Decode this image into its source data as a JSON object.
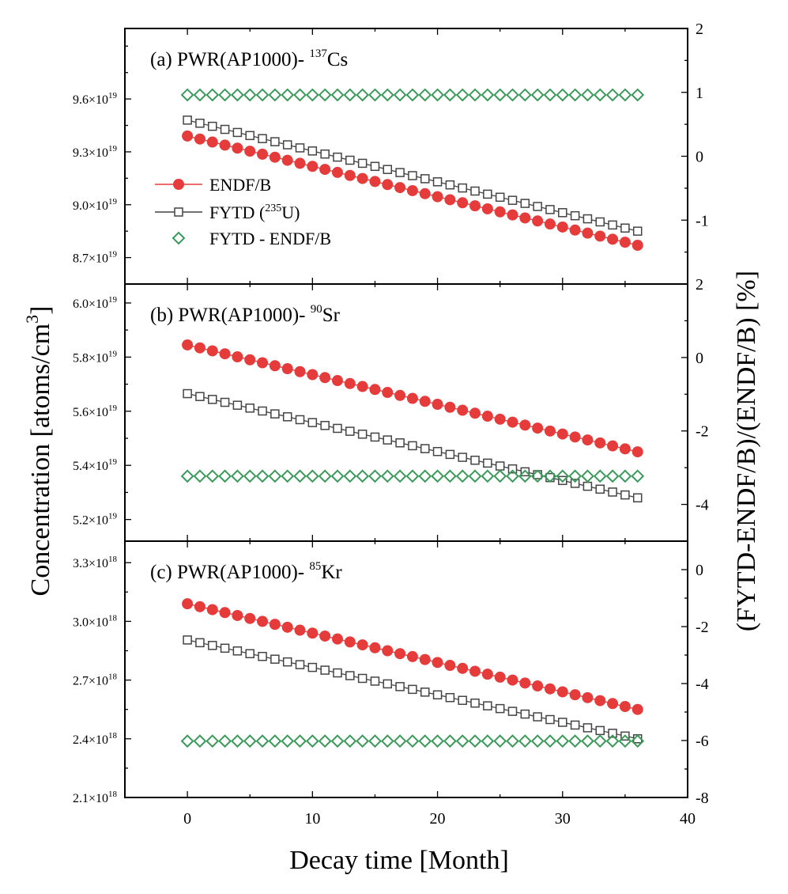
{
  "chart_data": {
    "type": "line",
    "xlabel": "Decay time [Month]",
    "ylabel_left": "Concentration [atoms/cm",
    "ylabel_left_sup": "3",
    "ylabel_left_end": "]",
    "ylabel_right": "(FYTD-ENDF/B)/(ENDF/B)  [%]",
    "xlim": [
      -5,
      40
    ],
    "xticks": [
      0,
      10,
      20,
      30,
      40
    ],
    "xtick_labels": [
      "0",
      "10",
      "20",
      "30",
      "40"
    ],
    "legend": {
      "position": "center-left of panel (a)",
      "entries": [
        {
          "label": "ENDF/B",
          "marker": "filled-circle",
          "color": "#e63b3b"
        },
        {
          "label_pre": "FYTD (",
          "label_sup": "235",
          "label_post": "U)",
          "marker": "open-square",
          "color": "#444444"
        },
        {
          "label": "FYTD - ENDF/B",
          "marker": "open-diamond",
          "color": "#3a9a5a"
        }
      ]
    },
    "panels": [
      {
        "id": "a",
        "title_pre": "(a) PWR(AP1000)-",
        "title_sup": "137",
        "title_post": "Cs",
        "ylim": [
          8.55,
          10.0
        ],
        "yticks": [
          8.7,
          9.0,
          9.3,
          9.6
        ],
        "ytick_mantissa": [
          "8.7",
          "9.0",
          "9.3",
          "9.6"
        ],
        "ytick_exponent": "19",
        "y2lim": [
          -2,
          2
        ],
        "y2ticks": [
          -1,
          0,
          1,
          2
        ],
        "y2tick_labels": [
          "-1",
          "0",
          "1",
          "2"
        ],
        "x": [
          0,
          36
        ],
        "series": [
          {
            "name": "ENDF/B",
            "unit_scale": "1e19",
            "start": 9.39,
            "end": 8.77
          },
          {
            "name": "FYTD (235U)",
            "unit_scale": "1e19",
            "start": 9.48,
            "end": 8.85
          },
          {
            "name": "FYTD - ENDF/B",
            "unit": "%",
            "start": 0.96,
            "end": 0.96
          }
        ]
      },
      {
        "id": "b",
        "title_pre": "(b) PWR(AP1000)-",
        "title_sup": "90",
        "title_post": "Sr",
        "ylim": [
          5.12,
          6.07
        ],
        "yticks": [
          5.2,
          5.4,
          5.6,
          5.8,
          6.0
        ],
        "ytick_mantissa": [
          "5.2",
          "5.4",
          "5.6",
          "5.8",
          "6.0"
        ],
        "ytick_exponent": "19",
        "y2lim": [
          -5,
          2
        ],
        "y2ticks": [
          -4,
          -2,
          0,
          2
        ],
        "y2tick_labels": [
          "-4",
          "-2",
          "0",
          "2"
        ],
        "x": [
          0,
          36
        ],
        "series": [
          {
            "name": "ENDF/B",
            "unit_scale": "1e19",
            "start": 5.845,
            "end": 5.45
          },
          {
            "name": "FYTD (235U)",
            "unit_scale": "1e19",
            "start": 5.665,
            "end": 5.28
          },
          {
            "name": "FYTD - ENDF/B",
            "unit": "%",
            "start": -3.23,
            "end": -3.23
          }
        ]
      },
      {
        "id": "c",
        "title_pre": "(c) PWR(AP1000)-",
        "title_sup": "85",
        "title_post": "Kr",
        "ylim": [
          2.1,
          3.41
        ],
        "yticks": [
          2.1,
          2.4,
          2.7,
          3.0,
          3.3
        ],
        "ytick_mantissa": [
          "2.1",
          "2.4",
          "2.7",
          "3.0",
          "3.3"
        ],
        "ytick_exponent": "18",
        "y2lim": [
          -8,
          1
        ],
        "y2ticks": [
          -8,
          -6,
          -4,
          -2,
          0
        ],
        "y2tick_labels": [
          "-8",
          "-6",
          "-4",
          "-2",
          "0"
        ],
        "x": [
          0,
          36
        ],
        "series": [
          {
            "name": "ENDF/B",
            "unit_scale": "1e18",
            "start": 3.09,
            "end": 2.55
          },
          {
            "name": "FYTD (235U)",
            "unit_scale": "1e18",
            "start": 2.905,
            "end": 2.4
          },
          {
            "name": "FYTD - ENDF/B",
            "unit": "%",
            "start": -6.02,
            "end": -6.02
          }
        ]
      }
    ]
  }
}
